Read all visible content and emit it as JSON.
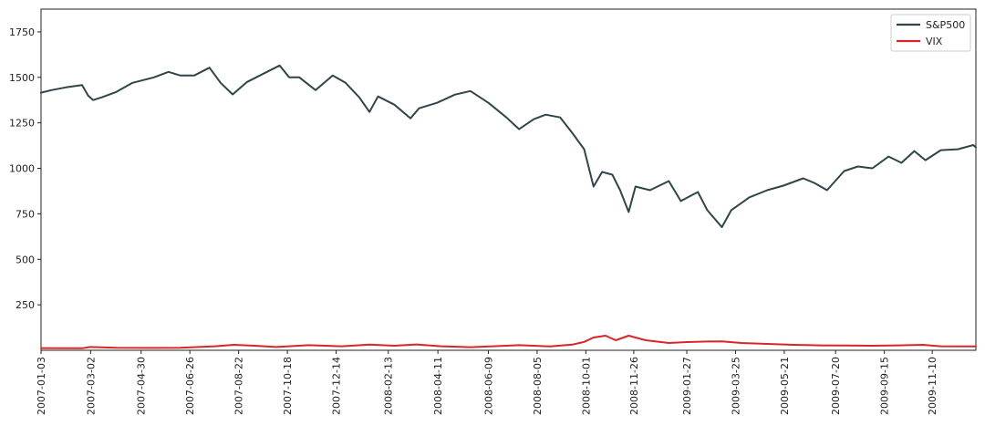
{
  "chart_data": {
    "type": "line",
    "title": "",
    "xlabel": "",
    "ylabel": "",
    "x_range": [
      "2007-01-03",
      "2009-12-31"
    ],
    "ylim": [
      0,
      1875
    ],
    "y_ticks": [
      250,
      500,
      750,
      1000,
      1250,
      1500,
      1750
    ],
    "x_ticks": [
      "2007-01-03",
      "2007-03-02",
      "2007-04-30",
      "2007-06-26",
      "2007-08-22",
      "2007-10-18",
      "2007-12-14",
      "2008-02-13",
      "2008-04-11",
      "2008-06-09",
      "2008-08-05",
      "2008-10-01",
      "2008-11-26",
      "2009-01-27",
      "2009-03-25",
      "2009-05-21",
      "2009-07-20",
      "2009-09-15",
      "2009-11-10"
    ],
    "grid": false,
    "legend_position": "top-right",
    "series": [
      {
        "name": "S&P500",
        "color": "#2f4548",
        "points": [
          [
            "2007-01-03",
            1416
          ],
          [
            "2007-01-15",
            1430
          ],
          [
            "2007-02-01",
            1445
          ],
          [
            "2007-02-20",
            1458
          ],
          [
            "2007-02-27",
            1400
          ],
          [
            "2007-03-05",
            1375
          ],
          [
            "2007-03-15",
            1390
          ],
          [
            "2007-04-01",
            1420
          ],
          [
            "2007-04-20",
            1470
          ],
          [
            "2007-05-15",
            1500
          ],
          [
            "2007-06-01",
            1530
          ],
          [
            "2007-06-15",
            1510
          ],
          [
            "2007-07-01",
            1510
          ],
          [
            "2007-07-19",
            1553
          ],
          [
            "2007-08-01",
            1470
          ],
          [
            "2007-08-15",
            1406
          ],
          [
            "2007-09-01",
            1475
          ],
          [
            "2007-09-20",
            1520
          ],
          [
            "2007-10-09",
            1565
          ],
          [
            "2007-10-20",
            1500
          ],
          [
            "2007-11-01",
            1500
          ],
          [
            "2007-11-20",
            1430
          ],
          [
            "2007-12-10",
            1510
          ],
          [
            "2007-12-25",
            1470
          ],
          [
            "2008-01-10",
            1390
          ],
          [
            "2008-01-22",
            1310
          ],
          [
            "2008-02-01",
            1395
          ],
          [
            "2008-02-20",
            1350
          ],
          [
            "2008-03-10",
            1275
          ],
          [
            "2008-03-20",
            1330
          ],
          [
            "2008-04-10",
            1360
          ],
          [
            "2008-05-01",
            1405
          ],
          [
            "2008-05-19",
            1425
          ],
          [
            "2008-06-09",
            1360
          ],
          [
            "2008-06-30",
            1280
          ],
          [
            "2008-07-15",
            1215
          ],
          [
            "2008-08-01",
            1270
          ],
          [
            "2008-08-15",
            1295
          ],
          [
            "2008-09-01",
            1280
          ],
          [
            "2008-09-15",
            1195
          ],
          [
            "2008-09-29",
            1105
          ],
          [
            "2008-10-10",
            900
          ],
          [
            "2008-10-20",
            980
          ],
          [
            "2008-11-01",
            965
          ],
          [
            "2008-11-10",
            880
          ],
          [
            "2008-11-20",
            760
          ],
          [
            "2008-11-28",
            900
          ],
          [
            "2008-12-15",
            880
          ],
          [
            "2009-01-06",
            930
          ],
          [
            "2009-01-20",
            820
          ],
          [
            "2009-02-09",
            870
          ],
          [
            "2009-02-20",
            770
          ],
          [
            "2009-03-09",
            677
          ],
          [
            "2009-03-20",
            770
          ],
          [
            "2009-04-10",
            840
          ],
          [
            "2009-05-01",
            880
          ],
          [
            "2009-05-20",
            905
          ],
          [
            "2009-06-12",
            945
          ],
          [
            "2009-06-25",
            920
          ],
          [
            "2009-07-10",
            880
          ],
          [
            "2009-07-30",
            985
          ],
          [
            "2009-08-15",
            1010
          ],
          [
            "2009-09-01",
            1000
          ],
          [
            "2009-09-20",
            1065
          ],
          [
            "2009-10-05",
            1030
          ],
          [
            "2009-10-20",
            1095
          ],
          [
            "2009-11-02",
            1045
          ],
          [
            "2009-11-20",
            1100
          ],
          [
            "2009-12-10",
            1105
          ],
          [
            "2009-12-28",
            1128
          ],
          [
            "2009-12-31",
            1115
          ]
        ]
      },
      {
        "name": "VIX",
        "color": "#d62728",
        "points": [
          [
            "2007-01-03",
            12
          ],
          [
            "2007-02-20",
            11
          ],
          [
            "2007-03-01",
            18
          ],
          [
            "2007-04-01",
            14
          ],
          [
            "2007-05-15",
            13
          ],
          [
            "2007-06-15",
            14
          ],
          [
            "2007-07-25",
            22
          ],
          [
            "2007-08-16",
            30
          ],
          [
            "2007-09-10",
            25
          ],
          [
            "2007-10-05",
            18
          ],
          [
            "2007-11-12",
            28
          ],
          [
            "2007-12-20",
            22
          ],
          [
            "2008-01-22",
            31
          ],
          [
            "2008-02-20",
            25
          ],
          [
            "2008-03-17",
            32
          ],
          [
            "2008-04-15",
            22
          ],
          [
            "2008-05-19",
            17
          ],
          [
            "2008-06-20",
            23
          ],
          [
            "2008-07-15",
            28
          ],
          [
            "2008-08-20",
            21
          ],
          [
            "2008-09-15",
            31
          ],
          [
            "2008-09-29",
            46
          ],
          [
            "2008-10-10",
            70
          ],
          [
            "2008-10-24",
            80
          ],
          [
            "2008-11-05",
            55
          ],
          [
            "2008-11-20",
            80
          ],
          [
            "2008-12-10",
            55
          ],
          [
            "2009-01-06",
            40
          ],
          [
            "2009-01-27",
            45
          ],
          [
            "2009-02-20",
            48
          ],
          [
            "2009-03-09",
            49
          ],
          [
            "2009-04-01",
            40
          ],
          [
            "2009-05-01",
            35
          ],
          [
            "2009-06-01",
            30
          ],
          [
            "2009-07-01",
            27
          ],
          [
            "2009-08-01",
            26
          ],
          [
            "2009-09-01",
            25
          ],
          [
            "2009-10-01",
            27
          ],
          [
            "2009-10-30",
            30
          ],
          [
            "2009-11-20",
            22
          ],
          [
            "2009-12-31",
            21
          ]
        ]
      }
    ]
  }
}
